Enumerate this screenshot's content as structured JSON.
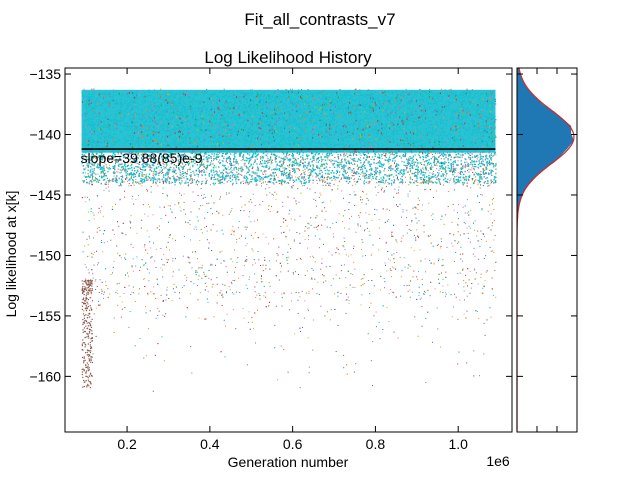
{
  "figure": {
    "suptitle": "Fit_all_contrasts_v7"
  },
  "chart_data": [
    {
      "type": "scatter",
      "title": "Log Likelihood History",
      "xlabel": "Generation number",
      "ylabel": "Log likelihood at x[k]",
      "x_offset_label": "1e6",
      "xlim": [
        0.05,
        1.13
      ],
      "ylim": [
        -164.6,
        -134.5
      ],
      "x_scale_factor": 1000000,
      "xticks": [
        0.2,
        0.4,
        0.6,
        0.8,
        1.0
      ],
      "xtick_labels": [
        "0.2",
        "0.4",
        "0.6",
        "0.8",
        "1.0"
      ],
      "yticks": [
        -135,
        -140,
        -145,
        -150,
        -155,
        -160
      ],
      "ytick_labels": [
        "−135",
        "−140",
        "−145",
        "−150",
        "−155",
        "−160"
      ],
      "grid": false,
      "x_range": [
        0.09,
        1.09
      ],
      "series_colors": [
        "#1f77b4",
        "#ff7f0e",
        "#2ca02c",
        "#d62728",
        "#9467bd",
        "#8c564b",
        "#e377c2",
        "#7f7f7f",
        "#bcbd22",
        "#17becf"
      ],
      "dense_band": {
        "color": "#17becf",
        "y_top": -136.4,
        "y_bottom": -144.0
      },
      "scatter_envelope": {
        "y_max": -136.2,
        "typical_min": -153.0,
        "outlier_min": -163.0
      },
      "early_outlier_tail": {
        "color": "#8c564b",
        "x_range": [
          0.09,
          0.115
        ],
        "y_range": [
          -152.0,
          -161.0
        ]
      },
      "trend_line": {
        "x": [
          0.09,
          1.09
        ],
        "y": [
          -141.2,
          -141.2
        ],
        "color": "#000000"
      },
      "annotation": "slope=39.88(85)e-9"
    },
    {
      "type": "histogram",
      "orientation": "horizontal",
      "shares_y_axis": true,
      "bin_color": "#1f77b4",
      "fit_curve": {
        "type": "normal",
        "mean": -140.2,
        "std": 2.2,
        "color": "#d62728",
        "peak_fraction": 0.95
      },
      "xticks_count": 2
    }
  ]
}
